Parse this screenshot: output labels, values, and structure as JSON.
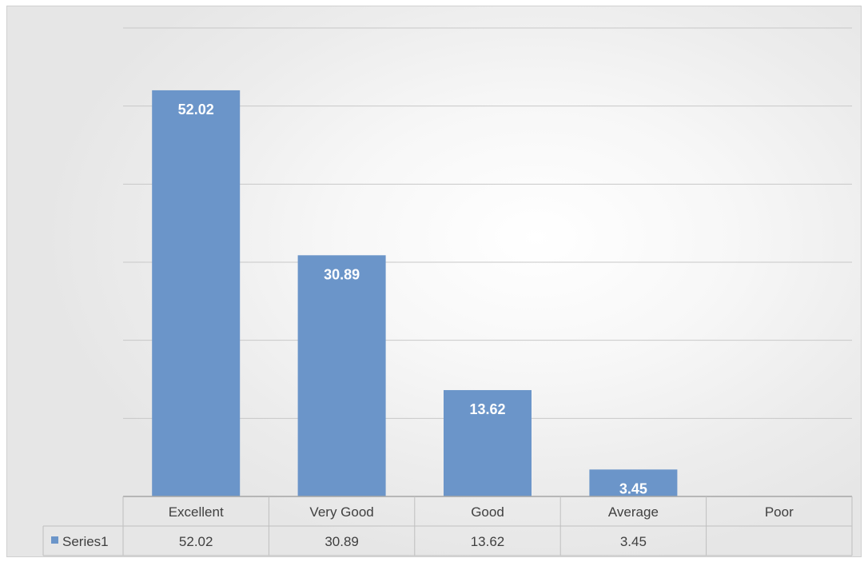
{
  "chart_data": {
    "type": "bar",
    "categories": [
      "Excellent",
      "Very Good",
      "Good",
      "Average",
      "Poor"
    ],
    "series": [
      {
        "name": "Series1",
        "values": [
          52.02,
          30.89,
          13.62,
          3.45,
          null
        ]
      }
    ],
    "value_labels": [
      "52.02",
      "30.89",
      "13.62",
      "3.45",
      ""
    ],
    "ylim": [
      0,
      60
    ],
    "grid": true,
    "legend": "data-table",
    "colors": {
      "bar": "#6b95c9",
      "gridline": "#c8c8c8",
      "table_border": "#bfbfbf",
      "text": "#404040",
      "label": "#ffffff"
    }
  }
}
